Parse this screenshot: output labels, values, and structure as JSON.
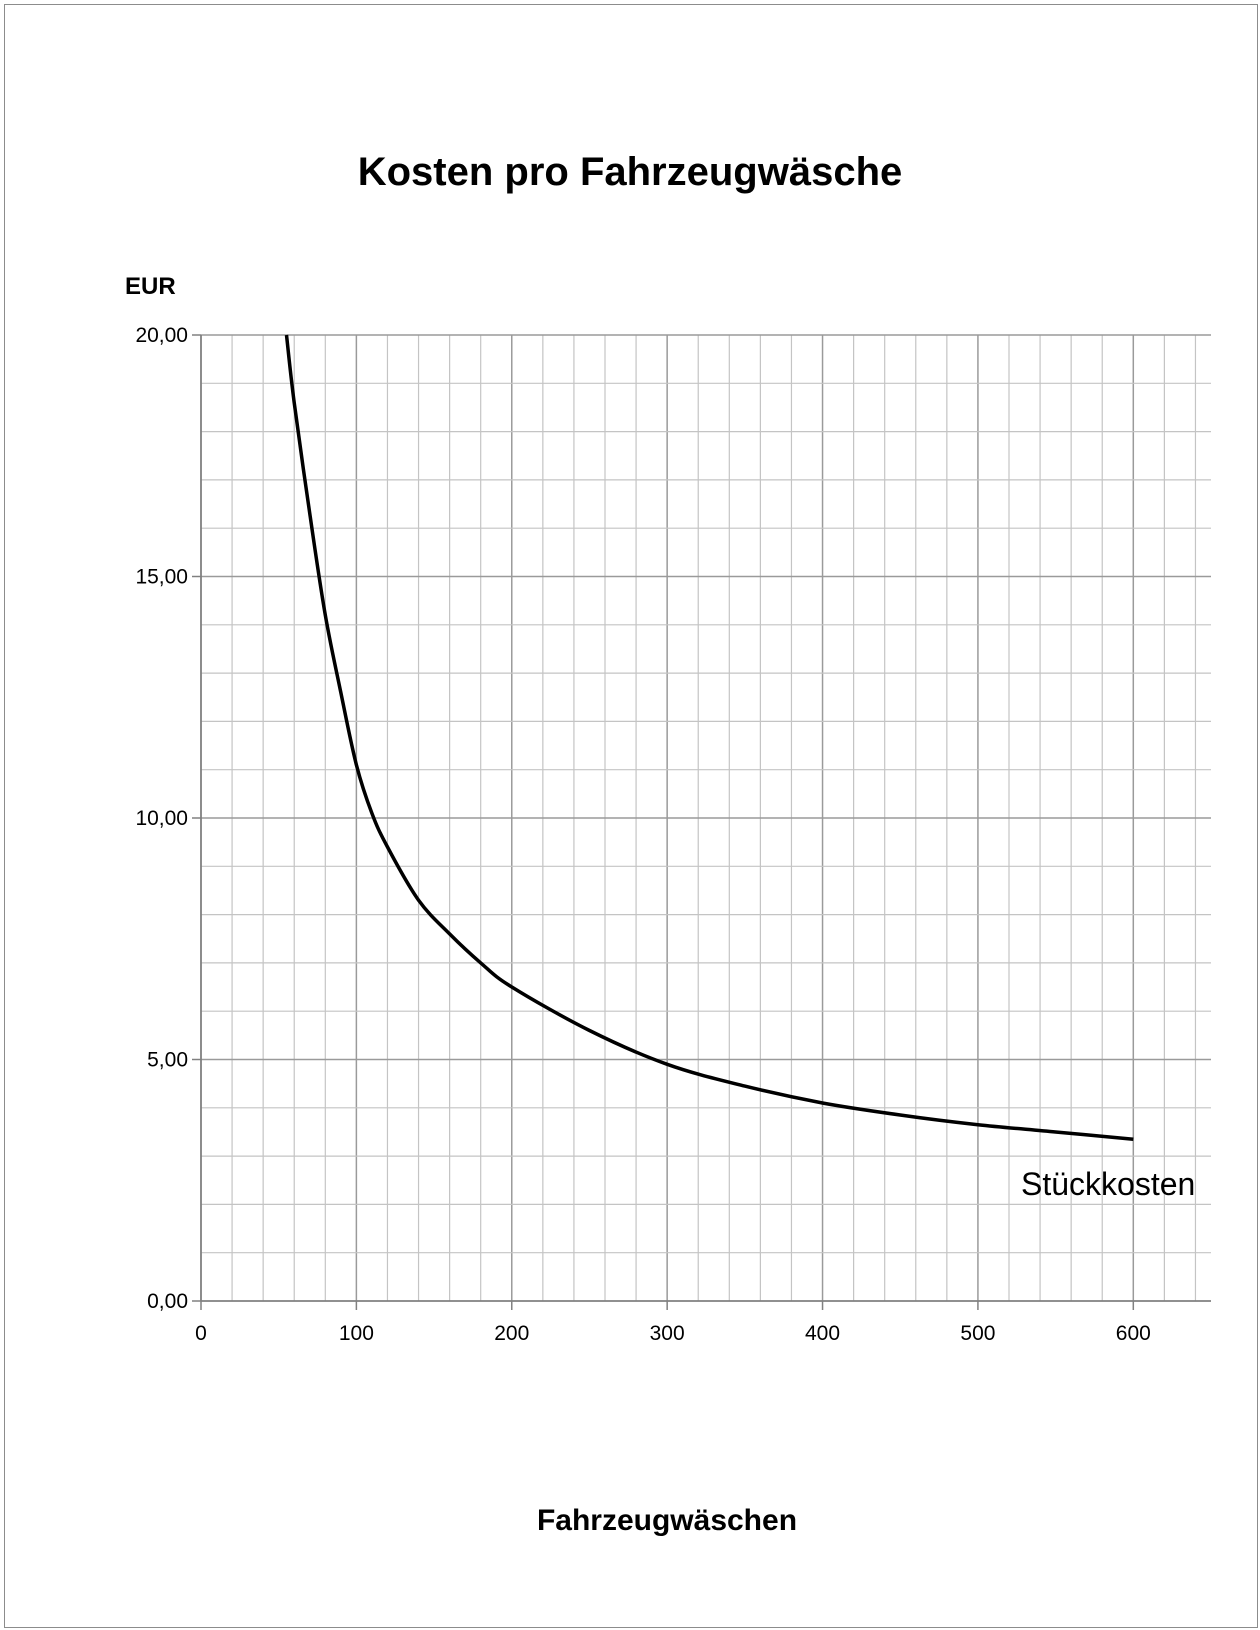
{
  "chart_data": {
    "type": "line",
    "title": "Kosten pro Fahrzeugwäsche",
    "xlabel": "Fahrzeugwäschen",
    "ylabel": "EUR",
    "xlim": [
      0,
      650
    ],
    "ylim": [
      0,
      20
    ],
    "x_ticks": [
      "0",
      "100",
      "200",
      "300",
      "400",
      "500",
      "600"
    ],
    "y_ticks": [
      "0,00",
      "5,00",
      "10,00",
      "15,00",
      "20,00"
    ],
    "grid": true,
    "series": [
      {
        "name": "Stückkosten",
        "color": "#000000",
        "x": [
          55,
          60,
          70,
          80,
          90,
          100,
          110,
          120,
          140,
          160,
          180,
          200,
          250,
          300,
          350,
          400,
          450,
          500,
          550,
          600
        ],
        "y": [
          20.0,
          18.6,
          16.3,
          14.2,
          12.6,
          11.1,
          10.1,
          9.4,
          8.3,
          7.6,
          7.0,
          6.5,
          5.6,
          4.9,
          4.45,
          4.1,
          3.85,
          3.65,
          3.5,
          3.35
        ]
      }
    ]
  }
}
